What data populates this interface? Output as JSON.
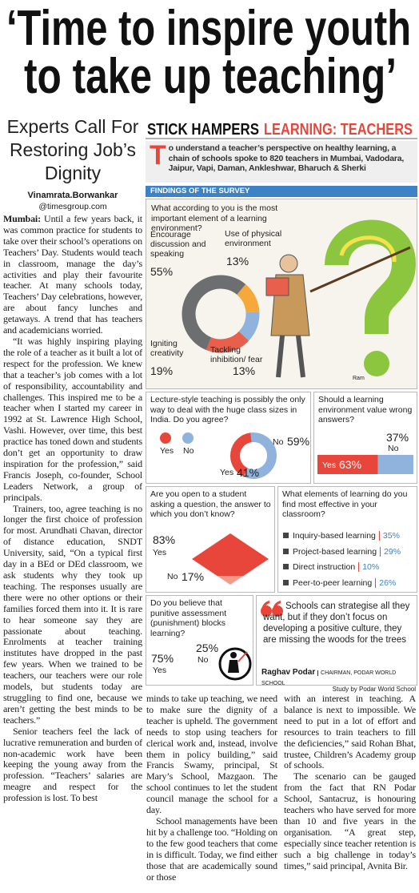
{
  "headline": {
    "lines": [
      "‘Time to inspire youth",
      "to take up teaching’"
    ]
  },
  "story": {
    "subheadline": "Experts Call For Restoring Job’s Dignity",
    "byline": "Vinamrata.Borwankar",
    "email": "@timesgroup.com",
    "dateline": "Mumbai:",
    "paragraphs": [
      "Until a few years back, it was common practice for students to take over their school’s operations on Teachers’ Day. Students would teach in classroom, manage the day’s activities and play their favourite teacher. At many schools today, Teachers’ Day celebrations, however, are about fancy lunches and getaways. A trend that has teachers and academicians worried.",
      "“It was highly inspiring playing the role of a teacher as it built a lot of respect for the profession. We knew that a teacher’s job comes with a lot of responsibility, accountability and challenges. This inspired me to be a teacher when I started my career in 1992 at St. Lawrence High School, Vashi. However, over time, this best practice has toned down and students don’t get an opportunity to draw inspiration for the profession,” said Francis Joseph, co-founder, School Leaders Network, a group of principals.",
      "Trainers, too, agree teaching is no longer the first choice of profession for most. Arundhati Chavan, director of distance education, SNDT University, said, “On a typical first day in a BEd or DEd classroom, we ask students why they took up teaching. The responses usually are there were no other options or their families forced them into it. It is rare to hear someone say they are passionate about teaching. Enrolments at teacher training institutes have dropped in the past few years. When we trained to be teachers, our teachers were our role models, but students today are struggling to find one, because we aren’t getting the best minds to be teachers.”",
      "Senior teachers feel the lack of lucrative remuneration and burden of non-academic work have been keeping the young away from the profession. “Teachers’ salaries are meagre and respect for the profession is lost. To best",
      "minds to take up teaching, we need to make sure the dignity of a teacher is upheld. The government needs to stop using teachers for clerical work and, instead, involve them in policy building,” said Francis Swamy, principal, St Mary’s School, Mazgaon. The school continues to let the student council manage the school for a day.",
      "School managements have been hit by a challenge too. “Holding on to the few good teachers that come in is difficult. Today, we find either those that are academically sound or those",
      "with an interest in teaching. A balance is next to impossible. We need to put in a lot of effort and resources to train teachers to fill the deficiencies,” said Rohan Bhat, trustee, Children’s Academy group of schools.",
      "The scenario can be gauged from the fact that RN Podar School, Santacruz, is honouring teachers who have served for more than 10 and five years in the organisation. “A great step, especially since teacher retention is such a big challenge in today’s times,” said principal, Avnita Bir."
    ]
  },
  "infographic": {
    "title_black": "STICK HAMPERS",
    "title_red": "LEARNING: TEACHERS",
    "intro": "To understand a teacher’s perspective on healthy learning, a chain of schools spoke to 820 teachers in Mumbai, Vadodara, Jaipur, Vapi, Daman, Ankleshwar, Bharuch & Sherki",
    "section": "FINDINGS OF THE SURVEY",
    "q1": {
      "question": "What according to you is the most important element of a learning environment?",
      "answers": [
        {
          "label": "Use of physical environment",
          "value": 13,
          "value_label": "13%",
          "color": "#f5a93b"
        },
        {
          "label": "Tackling inhibition/ fear",
          "value": 13,
          "value_label": "13%",
          "color": "#8fb3dc"
        },
        {
          "label": "Igniting creativity",
          "value": 19,
          "value_label": "19%",
          "color": "#e8604c"
        },
        {
          "label": "Encourage discussion and speaking",
          "value": 55,
          "value_label": "55%",
          "color": "#6d6e70"
        }
      ],
      "credit": "Ram"
    },
    "q2": {
      "question": "Lecture-style teaching is possibly the only way to deal with the huge class sizes in India. Do you agree?",
      "answers": [
        {
          "label": "Yes",
          "value": 41,
          "value_label": "41%",
          "color": "#e8463a"
        },
        {
          "label": "No",
          "value": 59,
          "value_label": "59%",
          "color": "#8fb3dc"
        }
      ]
    },
    "q3": {
      "question": "Should a learning environment value wrong answers?",
      "answers": [
        {
          "label": "Yes",
          "value": 63,
          "value_label": "63%",
          "color": "#e8463a"
        },
        {
          "label": "No",
          "value": 37,
          "value_label": "37%",
          "color": "#8fb3dc"
        }
      ]
    },
    "q4": {
      "question": "Are you open to a student asking a question, the answer to which you don’t know?",
      "answers": [
        {
          "label": "Yes",
          "value": 83,
          "value_label": "83%",
          "color": "#e8463a"
        },
        {
          "label": "No",
          "value": 17,
          "value_label": "17%",
          "color": "#f29a8c"
        }
      ]
    },
    "q5": {
      "question": "What elements of learning do you find most effective in your classroom?",
      "items": [
        {
          "label": "Inquiry-based learning",
          "value": "35%"
        },
        {
          "label": "Project-based learning",
          "value": "29%"
        },
        {
          "label": "Direct instruction",
          "value": "10%"
        },
        {
          "label": "Peer-to-peer learning",
          "value": "26%"
        }
      ]
    },
    "q6": {
      "question": "Do you believe that punitive assessment (punishment) blocks learning?",
      "answers": [
        {
          "label": "Yes",
          "value": "75%"
        },
        {
          "label": "No",
          "value": "25%"
        }
      ]
    },
    "quote": {
      "text": "Schools can strategise all they want, but if they don’t focus on developing a positive culture, they are missing the woods for the trees",
      "name": "Raghav Podar",
      "role": "CHAIRMAN, PODAR WORLD SCHOOL"
    },
    "source": "Study by Podar World School"
  }
}
